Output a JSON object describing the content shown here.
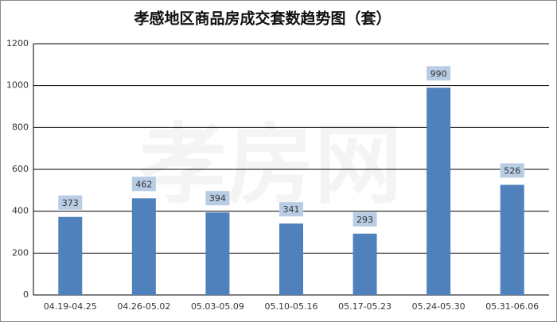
{
  "chart_data": {
    "type": "bar",
    "title": "孝感地区商品房成交套数趋势图（套）",
    "watermark": "孝房网",
    "categories": [
      "04.19-04.25",
      "04.26-05.02",
      "05.03-05.09",
      "05.10-05.16",
      "05.17-05.23",
      "05.24-05.30",
      "05.31-06.06"
    ],
    "values": [
      373,
      462,
      394,
      341,
      293,
      990,
      526
    ],
    "color": "#4f81bd",
    "ylim": [
      0,
      1200
    ],
    "yticks": [
      0,
      200,
      400,
      600,
      800,
      1000,
      1200
    ],
    "grid": true
  }
}
